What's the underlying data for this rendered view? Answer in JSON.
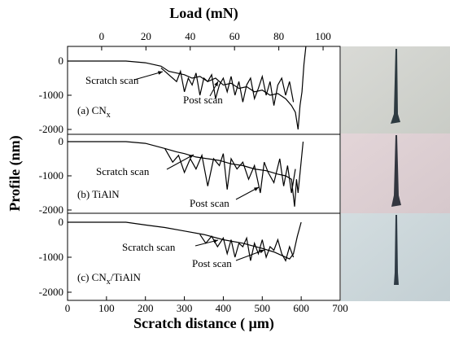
{
  "chart_data": [
    {
      "type": "line",
      "x2label": "Load (mN)",
      "x2lim": [
        -15.4,
        107.7
      ],
      "x2ticks": [
        0,
        20,
        40,
        60,
        80,
        100
      ],
      "xlim": [
        0,
        700
      ],
      "ylim": [
        -2143,
        429
      ],
      "yticks": [
        0,
        -1000,
        -2000
      ],
      "label": "(a) CN",
      "label_sub": "x",
      "series": [
        {
          "name": "Scratch scan",
          "color": "#000000",
          "x": [
            0,
            150,
            200,
            240,
            260,
            280,
            300,
            320,
            340,
            360,
            380,
            400,
            420,
            440,
            460,
            480,
            500,
            520,
            540,
            560,
            575,
            585,
            592,
            597,
            602,
            607,
            612
          ],
          "values": [
            0,
            0,
            -50,
            -150,
            -300,
            -350,
            -400,
            -500,
            -450,
            -600,
            -500,
            -700,
            -650,
            -800,
            -750,
            -900,
            -850,
            -1000,
            -950,
            -1100,
            -1300,
            -1500,
            -2000,
            -1300,
            -900,
            -100,
            429
          ]
        },
        {
          "name": "Post scan",
          "color": "#000000",
          "x": [
            240,
            260,
            280,
            290,
            300,
            310,
            320,
            330,
            340,
            350,
            360,
            370,
            380,
            390,
            400,
            410,
            420,
            430,
            440,
            450,
            460,
            470,
            480,
            490,
            500,
            510,
            520,
            530,
            540,
            550,
            560,
            570,
            580
          ],
          "values": [
            -200,
            -400,
            -600,
            -300,
            -900,
            -500,
            -700,
            -350,
            -1000,
            -500,
            -600,
            -400,
            -1100,
            -700,
            -500,
            -900,
            -450,
            -1000,
            -600,
            -1200,
            -700,
            -500,
            -1100,
            -800,
            -450,
            -1000,
            -600,
            -1300,
            -700,
            -500,
            -1000,
            -600,
            -1200
          ]
        }
      ]
    },
    {
      "type": "line",
      "ylabel": "Profile (nm)",
      "xlim": [
        0,
        700
      ],
      "ylim": [
        -2095,
        214
      ],
      "yticks": [
        0,
        -1000,
        -2000
      ],
      "label": "(b) TiAlN",
      "series": [
        {
          "name": "Scratch scan",
          "color": "#000000",
          "x": [
            0,
            150,
            200,
            250,
            280,
            300,
            330,
            360,
            390,
            420,
            450,
            480,
            510,
            540,
            560,
            575,
            583,
            588,
            592,
            598,
            605
          ],
          "values": [
            0,
            0,
            -50,
            -200,
            -300,
            -350,
            -450,
            -500,
            -550,
            -650,
            -700,
            -800,
            -850,
            -950,
            -1000,
            -1100,
            -1900,
            -1100,
            -1500,
            -800,
            0
          ]
        },
        {
          "name": "Post scan",
          "color": "#000000",
          "x": [
            250,
            270,
            285,
            300,
            315,
            330,
            345,
            360,
            375,
            390,
            400,
            410,
            420,
            435,
            450,
            465,
            480,
            495,
            505,
            515,
            530,
            545,
            555,
            565,
            575,
            585
          ],
          "values": [
            -200,
            -600,
            -400,
            -900,
            -500,
            -800,
            -400,
            -1300,
            -500,
            -700,
            -350,
            -1400,
            -500,
            -800,
            -600,
            -1100,
            -700,
            -1500,
            -600,
            -900,
            -1200,
            -500,
            -1300,
            -700,
            -1500,
            -800
          ]
        }
      ]
    },
    {
      "type": "line",
      "xlabel": "Scratch distance ( μm)",
      "xlim": [
        0,
        700
      ],
      "xticks": [
        0,
        100,
        200,
        300,
        400,
        500,
        600,
        700
      ],
      "ylim": [
        -2233,
        256
      ],
      "yticks": [
        0,
        -1000,
        -2000
      ],
      "label": "(c) CN",
      "label_sub": "x",
      "label_tail": "/TiAlN",
      "series": [
        {
          "name": "Scratch scan",
          "color": "#000000",
          "x": [
            0,
            150,
            200,
            250,
            300,
            350,
            400,
            450,
            500,
            530,
            550,
            570,
            580,
            590,
            600
          ],
          "values": [
            0,
            0,
            -80,
            -150,
            -250,
            -350,
            -500,
            -600,
            -750,
            -850,
            -950,
            -1050,
            -900,
            -400,
            0
          ]
        },
        {
          "name": "Post scan",
          "color": "#000000",
          "x": [
            340,
            355,
            370,
            385,
            400,
            410,
            420,
            430,
            440,
            450,
            460,
            470,
            480,
            490,
            500,
            510,
            520,
            530,
            540,
            550,
            560,
            570,
            580
          ],
          "values": [
            -350,
            -600,
            -400,
            -700,
            -450,
            -900,
            -500,
            -1000,
            -600,
            -700,
            -450,
            -1100,
            -600,
            -900,
            -500,
            -1000,
            -700,
            -800,
            -500,
            -900,
            -1100,
            -700,
            -1000
          ]
        }
      ]
    }
  ]
}
